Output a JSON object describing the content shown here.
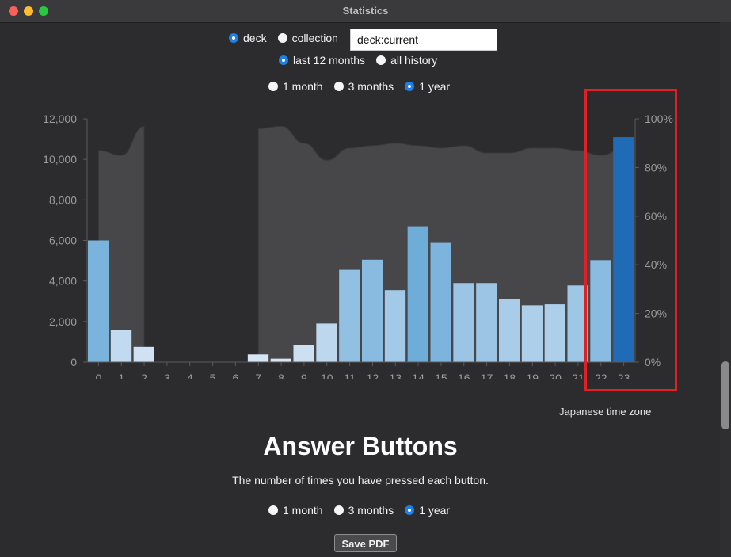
{
  "window": {
    "title": "Statistics"
  },
  "filters": {
    "scope": [
      {
        "label": "deck",
        "selected": true
      },
      {
        "label": "collection",
        "selected": false
      }
    ],
    "search_value": "deck:current",
    "history": [
      {
        "label": "last 12 months",
        "selected": true
      },
      {
        "label": "all history",
        "selected": false
      }
    ]
  },
  "hourly_range": [
    {
      "label": "1 month",
      "selected": false
    },
    {
      "label": "3 months",
      "selected": false
    },
    {
      "label": "1 year",
      "selected": true
    }
  ],
  "chart_data": {
    "type": "bar",
    "title": "",
    "categories": [
      "0",
      "1",
      "2",
      "3",
      "4",
      "5",
      "6",
      "7",
      "8",
      "9",
      "10",
      "11",
      "12",
      "13",
      "14",
      "15",
      "16",
      "17",
      "18",
      "19",
      "20",
      "21",
      "22",
      "23"
    ],
    "series": [
      {
        "values": [
          6000,
          1600,
          750,
          0,
          0,
          0,
          0,
          380,
          170,
          850,
          1900,
          4550,
          5050,
          3550,
          6700,
          5880,
          3900,
          3900,
          3100,
          2800,
          2850,
          3780,
          5030,
          11100
        ]
      }
    ],
    "secondary_series": {
      "type": "area",
      "values": [
        87,
        85,
        97,
        null,
        null,
        null,
        null,
        96,
        97,
        90,
        83,
        88,
        89,
        90,
        89,
        88,
        89,
        86,
        86,
        88,
        88,
        87,
        85,
        88
      ]
    },
    "y_left": {
      "ylim": [
        0,
        12000
      ],
      "ticks": [
        "0",
        "2,000",
        "4,000",
        "6,000",
        "8,000",
        "10,000",
        "12,000"
      ]
    },
    "y_right": {
      "ylim": [
        0,
        100
      ],
      "ticks": [
        "0%",
        "20%",
        "40%",
        "60%",
        "80%",
        "100%"
      ]
    },
    "colors": {
      "bar_light": "#dbe8f6",
      "bar_dark": "#6aaad8",
      "bar_max": "#1f6bb5",
      "area": "#4a4a4d"
    },
    "grid": false
  },
  "timezone_note": "Japanese time zone",
  "answer_buttons": {
    "title": "Answer Buttons",
    "subtitle": "The number of times you have pressed each button.",
    "range": [
      {
        "label": "1 month",
        "selected": false
      },
      {
        "label": "3 months",
        "selected": false
      },
      {
        "label": "1 year",
        "selected": true
      }
    ]
  },
  "save_pdf_label": "Save PDF",
  "colors": {
    "window_bg": "#2c2c2e",
    "accent": "#1f7fe8",
    "highlight": "#e12026"
  }
}
